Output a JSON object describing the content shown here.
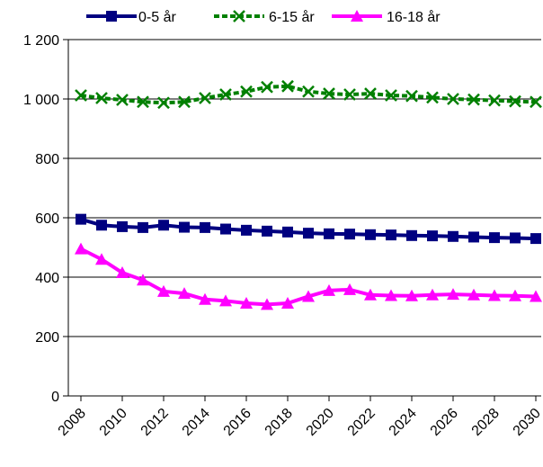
{
  "chart_data": {
    "type": "line",
    "x": [
      2008,
      2009,
      2010,
      2011,
      2012,
      2013,
      2014,
      2015,
      2016,
      2017,
      2018,
      2019,
      2020,
      2021,
      2022,
      2023,
      2024,
      2025,
      2026,
      2027,
      2028,
      2029,
      2030
    ],
    "x_ticks": [
      "2008",
      "2010",
      "2012",
      "2014",
      "2016",
      "2018",
      "2020",
      "2022",
      "2024",
      "2026",
      "2028",
      "2030"
    ],
    "y_ticks": [
      "0",
      "200",
      "400",
      "600",
      "800",
      "1 200"
    ],
    "y_ticks_all": [
      "0",
      "200",
      "400",
      "600",
      "800",
      "1 000",
      "1 200"
    ],
    "ylim": [
      0,
      1200
    ],
    "grid": true,
    "legend_position": "top",
    "series": [
      {
        "name": "0-5 år",
        "color": "#000080",
        "marker": "square",
        "values": [
          595,
          575,
          570,
          567,
          575,
          568,
          567,
          562,
          558,
          555,
          552,
          548,
          546,
          545,
          543,
          542,
          540,
          539,
          537,
          535,
          533,
          532,
          530
        ]
      },
      {
        "name": "6-15 år",
        "color": "#008000",
        "marker": "x",
        "dashed": true,
        "values": [
          1012,
          1003,
          997,
          990,
          987,
          990,
          1003,
          1015,
          1025,
          1040,
          1043,
          1025,
          1018,
          1015,
          1018,
          1012,
          1010,
          1005,
          1000,
          998,
          995,
          992,
          990
        ]
      },
      {
        "name": "16-18 år",
        "color": "#FF00FF",
        "marker": "triangle",
        "values": [
          495,
          460,
          415,
          390,
          352,
          345,
          325,
          320,
          312,
          308,
          312,
          335,
          355,
          358,
          340,
          338,
          337,
          340,
          342,
          340,
          338,
          337,
          335
        ]
      }
    ]
  }
}
